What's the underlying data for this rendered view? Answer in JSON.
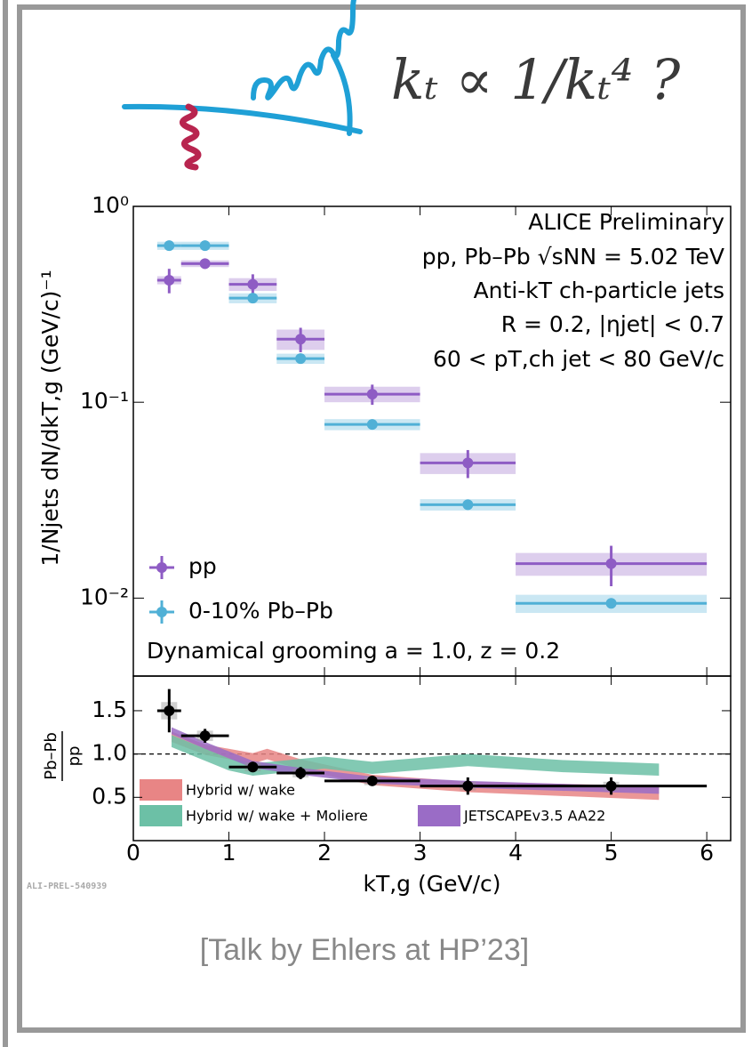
{
  "slide": {
    "annotation": "kₜ ∝ 1/kₜ⁴ ?",
    "figure_id": "ALI-PREL-540939",
    "footer": "[Talk by Ehlers at HP’23]"
  },
  "chart_data": [
    {
      "type": "errorbar",
      "log_y": true,
      "ylabel": "1/Njets dN/dkT,g (GeV/c)⁻¹",
      "annotations": [
        "ALICE Preliminary",
        "pp, Pb–Pb √sNN = 5.02 TeV",
        "Anti-kT ch-particle jets",
        "R = 0.2, |ηjet| < 0.7",
        "60 < pT,ch jet < 80 GeV/c",
        "Dynamical grooming a = 1.0, z = 0.2"
      ],
      "bins": [
        0.25,
        0.5,
        1,
        1.5,
        2,
        3,
        4,
        6
      ],
      "x": [
        0.375,
        0.75,
        1.25,
        1.75,
        2.5,
        3.5,
        5
      ],
      "series": [
        {
          "name": "pp",
          "color": "#8e5cc4",
          "values": [
            0.42,
            0.51,
            0.4,
            0.21,
            0.11,
            0.049,
            0.015
          ],
          "errors": [
            0.06,
            0.03,
            0.05,
            0.03,
            0.013,
            0.008,
            0.0035
          ],
          "sys_errors": [
            0.02,
            0.02,
            0.03,
            0.025,
            0.01,
            0.006,
            0.002
          ]
        },
        {
          "name": "0-10% Pb–Pb",
          "color": "#50b0d6",
          "values": [
            0.63,
            0.63,
            0.34,
            0.167,
            0.077,
            0.03,
            0.0094
          ],
          "errors": [
            0.01,
            0.01,
            0.01,
            0.005,
            0.002,
            0.001,
            0.0003
          ],
          "sys_errors": [
            0.03,
            0.03,
            0.02,
            0.01,
            0.005,
            0.002,
            0.001
          ]
        }
      ],
      "xlim": [
        0,
        6.25
      ],
      "ylim": [
        0.004,
        1
      ],
      "yticks": [
        {
          "value": 1,
          "label": "10⁰"
        },
        {
          "value": 0.1,
          "label": "10⁻¹"
        },
        {
          "value": 0.01,
          "label": "10⁻²"
        }
      ]
    },
    {
      "type": "ratio",
      "xlabel": "kT,g (GeV/c)",
      "ylabel": [
        "Pb–Pb",
        "pp"
      ],
      "bins": [
        0.25,
        0.5,
        1,
        1.5,
        2,
        3,
        4,
        6
      ],
      "x": [
        0.375,
        0.75,
        1.25,
        1.75,
        2.5,
        3.5,
        5
      ],
      "values": [
        1.5,
        1.21,
        0.85,
        0.78,
        0.69,
        0.63,
        0.63
      ],
      "errors": [
        0.25,
        0.08,
        0.06,
        0.07,
        0.05,
        0.1,
        0.1
      ],
      "sys_errors": [
        0.1,
        0.06,
        0.05,
        0.05,
        0.05,
        0.05,
        0.05
      ],
      "color": "#000000",
      "reference_line": 1,
      "models": [
        {
          "name": "Hybrid w/ wake",
          "color": "#e88585",
          "x": [
            0.4,
            0.75,
            1.25,
            1.4,
            1.75,
            2.5,
            3.5,
            5.5
          ],
          "lower": [
            1.14,
            0.99,
            0.89,
            0.94,
            0.82,
            0.64,
            0.56,
            0.47
          ],
          "upper": [
            1.26,
            1.11,
            1.01,
            1.06,
            0.94,
            0.76,
            0.68,
            0.63
          ]
        },
        {
          "name": "Hybrid w/ wake + Moliere",
          "color": "#6cc0a6",
          "x": [
            0.4,
            1.0,
            1.25,
            2.0,
            2.5,
            3.5,
            4.5,
            5.5
          ],
          "lower": [
            1.08,
            0.81,
            0.75,
            0.83,
            0.77,
            0.86,
            0.79,
            0.75
          ],
          "upper": [
            1.22,
            0.95,
            0.89,
            0.97,
            0.91,
            1.0,
            0.93,
            0.89
          ]
        },
        {
          "name": "JETSCAPEv3.5 AA22",
          "color": "#9a6cc6",
          "x": [
            0.4,
            0.75,
            1.25,
            1.75,
            2.5,
            3.5,
            5.5
          ],
          "lower": [
            1.23,
            1.06,
            0.84,
            0.76,
            0.66,
            0.61,
            0.54
          ],
          "upper": [
            1.31,
            1.14,
            0.92,
            0.84,
            0.74,
            0.69,
            0.62
          ]
        }
      ],
      "xlim": [
        0,
        6.25
      ],
      "ylim": [
        0,
        1.9
      ],
      "xticks": [
        0,
        1,
        2,
        3,
        4,
        5,
        6
      ],
      "yticks": [
        0.5,
        {
          "value": 1,
          "label": "1.0"
        },
        1.5
      ]
    }
  ]
}
